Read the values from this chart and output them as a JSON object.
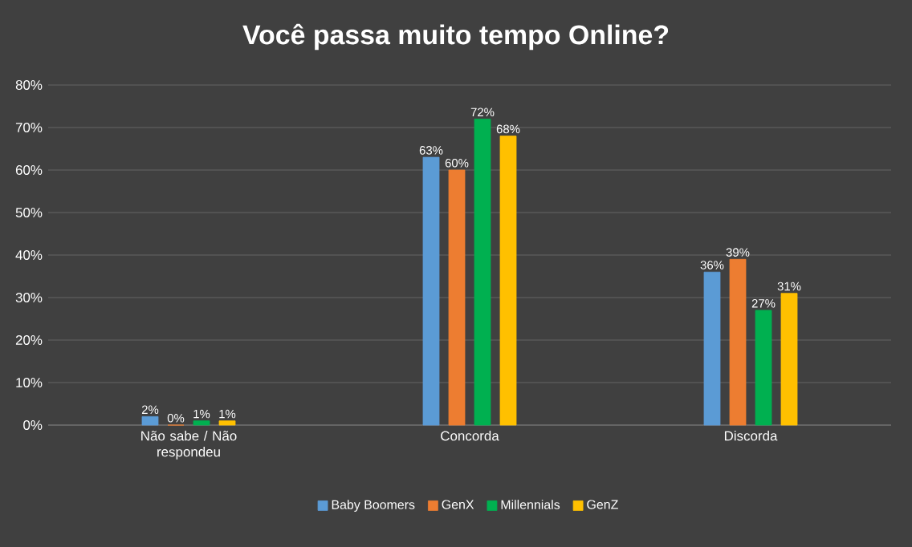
{
  "chart_data": {
    "type": "bar",
    "title": "Você passa  muito tempo Online?",
    "categories": [
      "Não sabe / Não respondeu",
      "Concorda",
      "Discorda"
    ],
    "series": [
      {
        "name": "Baby Boomers",
        "color": "#5b9bd5",
        "values": [
          2,
          63,
          36
        ],
        "value_labels": [
          "2%",
          "63%",
          "36%"
        ]
      },
      {
        "name": "GenX",
        "color": "#ed7d31",
        "values": [
          0,
          60,
          39
        ],
        "value_labels": [
          "0%",
          "60%",
          "39%"
        ]
      },
      {
        "name": "Millennials",
        "color": "#00b050",
        "values": [
          1,
          72,
          27
        ],
        "value_labels": [
          "1%",
          "72%",
          "27%"
        ]
      },
      {
        "name": "GenZ",
        "color": "#ffc000",
        "values": [
          1,
          68,
          31
        ],
        "value_labels": [
          "1%",
          "68%",
          "31%"
        ]
      }
    ],
    "ylim": [
      0,
      80
    ],
    "yticks": [
      {
        "value": 0,
        "label": "0%"
      },
      {
        "value": 10,
        "label": "10%"
      },
      {
        "value": 20,
        "label": "20%"
      },
      {
        "value": 30,
        "label": "30%"
      },
      {
        "value": 40,
        "label": "40%"
      },
      {
        "value": 50,
        "label": "50%"
      },
      {
        "value": 60,
        "label": "60%"
      },
      {
        "value": 70,
        "label": "70%"
      },
      {
        "value": 80,
        "label": "80%"
      }
    ],
    "grid": "y",
    "legend": "bottom"
  }
}
